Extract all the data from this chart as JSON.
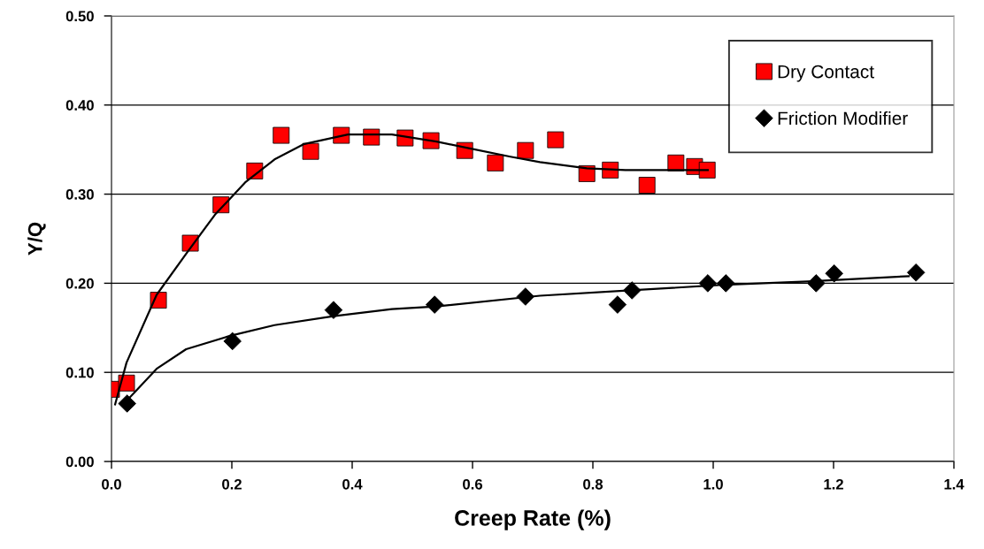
{
  "chart_data": {
    "type": "scatter",
    "xlabel": "Creep Rate (%)",
    "ylabel": "Y/Q",
    "xlim": [
      0,
      1.4
    ],
    "xticks": [
      {
        "value": 0,
        "label": "0.0"
      },
      {
        "value": 0.2,
        "label": "0.2"
      },
      {
        "value": 0.4,
        "label": "0.4"
      },
      {
        "value": 0.6,
        "label": "0.6"
      },
      {
        "value": 0.8,
        "label": "0.8"
      },
      {
        "value": 1,
        "label": "1.0"
      },
      {
        "value": 1.2,
        "label": "1.2"
      },
      {
        "value": 1.4,
        "label": "1.4"
      }
    ],
    "ylim": [
      0,
      0.5
    ],
    "yticks": [
      {
        "value": 0,
        "label": "0.00"
      },
      {
        "value": 0.1,
        "label": "0.10"
      },
      {
        "value": 0.2,
        "label": "0.20"
      },
      {
        "value": 0.3,
        "label": "0.30"
      },
      {
        "value": 0.4,
        "label": "0.40"
      },
      {
        "value": 0.5,
        "label": "0.50"
      }
    ],
    "grid": "y",
    "legend": "top right",
    "series": [
      {
        "name": "Dry Contact",
        "marker": "square",
        "color": "#ff0000",
        "x": [
          0.0,
          0.025,
          0.078,
          0.131,
          0.182,
          0.238,
          0.282,
          0.331,
          0.382,
          0.432,
          0.488,
          0.531,
          0.587,
          0.638,
          0.688,
          0.738,
          0.79,
          0.829,
          0.89,
          0.938,
          0.969,
          0.99
        ],
        "values": [
          0.081,
          0.088,
          0.181,
          0.245,
          0.288,
          0.326,
          0.366,
          0.348,
          0.366,
          0.364,
          0.363,
          0.36,
          0.349,
          0.335,
          0.349,
          0.361,
          0.323,
          0.327,
          0.31,
          0.335,
          0.331,
          0.327
        ]
      },
      {
        "name": "Friction Modifier",
        "marker": "diamond",
        "color": "#000000",
        "x": [
          0.026,
          0.201,
          0.369,
          0.537,
          0.688,
          0.841,
          0.865,
          0.991,
          1.021,
          1.171,
          1.201,
          1.337
        ],
        "values": [
          0.065,
          0.135,
          0.17,
          0.176,
          0.185,
          0.176,
          0.192,
          0.2,
          0.2,
          0.2,
          0.211,
          0.212
        ]
      },
      {
        "type": "line",
        "marker": "none",
        "color": "#000000",
        "x": [
          0.006,
          0.025,
          0.075,
          0.124,
          0.172,
          0.222,
          0.271,
          0.319,
          0.393,
          0.466,
          0.54,
          0.59,
          0.663,
          0.712,
          0.79,
          0.854,
          0.991
        ],
        "values": [
          0.064,
          0.111,
          0.187,
          0.233,
          0.277,
          0.313,
          0.339,
          0.356,
          0.367,
          0.367,
          0.359,
          0.352,
          0.342,
          0.336,
          0.329,
          0.327,
          0.327
        ]
      },
      {
        "type": "line",
        "marker": "none",
        "color": "#000000",
        "x": [
          0.025,
          0.075,
          0.124,
          0.197,
          0.271,
          0.369,
          0.466,
          0.54,
          0.712,
          0.863,
          1.01,
          1.157,
          1.325
        ],
        "values": [
          0.068,
          0.104,
          0.126,
          0.141,
          0.153,
          0.163,
          0.171,
          0.174,
          0.186,
          0.192,
          0.198,
          0.202,
          0.208
        ]
      }
    ]
  }
}
